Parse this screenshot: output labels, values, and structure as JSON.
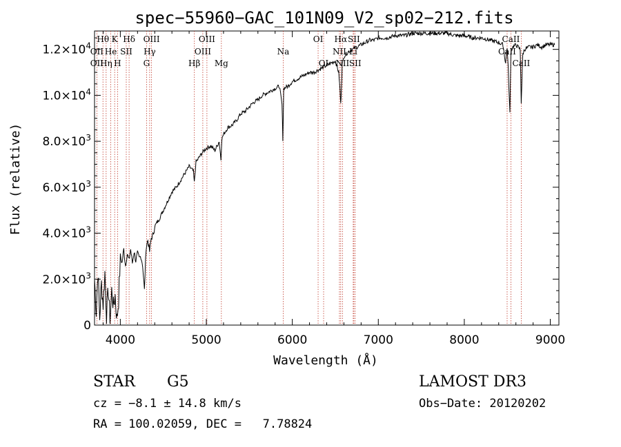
{
  "chart_data": {
    "type": "line",
    "title": "spec−55960−GAC_101N09_V2_sp02−212.fits",
    "xlabel": "Wavelength (Å)",
    "ylabel": "Flux (relative)",
    "xlim": [
      3700,
      9100
    ],
    "ylim": [
      0,
      12800
    ],
    "x_ticks": [
      4000,
      5000,
      6000,
      7000,
      8000,
      9000
    ],
    "x_tick_labels": [
      "4000",
      "5000",
      "6000",
      "7000",
      "8000",
      "9000"
    ],
    "y_ticks": [
      0,
      2000,
      4000,
      6000,
      8000,
      10000,
      12000
    ],
    "y_tick_labels": [
      {
        "m": "0",
        "e": ""
      },
      {
        "m": "2.0×10",
        "e": "3"
      },
      {
        "m": "4.0×10",
        "e": "3"
      },
      {
        "m": "6.0×10",
        "e": "3"
      },
      {
        "m": "8.0×10",
        "e": "3"
      },
      {
        "m": "1.0×10",
        "e": "4"
      },
      {
        "m": "1.2×10",
        "e": "4"
      }
    ],
    "series": [
      {
        "name": "spectrum",
        "x": [
          3700,
          3720,
          3740,
          3760,
          3780,
          3800,
          3820,
          3840,
          3860,
          3880,
          3900,
          3920,
          3940,
          3960,
          3980,
          4000,
          4020,
          4040,
          4060,
          4080,
          4100,
          4120,
          4140,
          4160,
          4180,
          4200,
          4220,
          4240,
          4260,
          4280,
          4300,
          4320,
          4340,
          4360,
          4380,
          4400,
          4450,
          4500,
          4550,
          4600,
          4650,
          4700,
          4750,
          4800,
          4850,
          4860,
          4880,
          4900,
          4950,
          5000,
          5050,
          5100,
          5150,
          5170,
          5180,
          5200,
          5250,
          5300,
          5350,
          5400,
          5450,
          5500,
          5550,
          5600,
          5650,
          5700,
          5750,
          5800,
          5850,
          5880,
          5890,
          5900,
          5950,
          6000,
          6050,
          6100,
          6150,
          6200,
          6250,
          6300,
          6350,
          6400,
          6450,
          6500,
          6540,
          6555,
          6563,
          6570,
          6580,
          6600,
          6650,
          6700,
          6750,
          6800,
          6850,
          6900,
          6950,
          7000,
          7100,
          7200,
          7300,
          7400,
          7500,
          7600,
          7700,
          7800,
          7900,
          8000,
          8100,
          8200,
          8300,
          8400,
          8450,
          8480,
          8498,
          8510,
          8530,
          8542,
          8560,
          8600,
          8650,
          8662,
          8680,
          8700,
          8750,
          8800,
          8850,
          8900,
          8950,
          9000,
          9050
        ],
        "values": [
          2000,
          600,
          2400,
          300,
          1800,
          900,
          2300,
          400,
          1600,
          200,
          1500,
          800,
          1300,
          250,
          1100,
          3000,
          2700,
          3300,
          2600,
          3100,
          2800,
          3300,
          2700,
          3200,
          2800,
          3100,
          2900,
          3000,
          2600,
          1500,
          3400,
          3700,
          3200,
          3800,
          3900,
          4300,
          4600,
          5000,
          5400,
          5800,
          6000,
          6300,
          6600,
          6900,
          6700,
          6200,
          7100,
          7200,
          7500,
          7700,
          7800,
          7600,
          8000,
          7200,
          8100,
          8300,
          8600,
          8700,
          8900,
          9200,
          9300,
          9500,
          9700,
          9800,
          10000,
          10100,
          10200,
          10300,
          10400,
          9600,
          8100,
          10300,
          10400,
          10600,
          10700,
          10800,
          10900,
          11000,
          11000,
          11100,
          11200,
          11300,
          11400,
          11500,
          11000,
          10200,
          9600,
          10300,
          11300,
          11700,
          11900,
          12000,
          12100,
          12200,
          12300,
          12400,
          12400,
          12500,
          12500,
          12600,
          12600,
          12700,
          12700,
          12700,
          12700,
          12700,
          12600,
          12600,
          12500,
          12500,
          12400,
          12300,
          12200,
          11400,
          12100,
          11200,
          9200,
          11900,
          12100,
          12200,
          12000,
          9700,
          11800,
          12000,
          12100,
          12100,
          12200,
          12100,
          12200,
          12200,
          12200
        ]
      }
    ],
    "line_markers": [
      {
        "label": "Hθ",
        "wl": 3798,
        "row": 0
      },
      {
        "label": "K",
        "wl": 3934,
        "row": 0
      },
      {
        "label": "Hδ",
        "wl": 4102,
        "row": 0
      },
      {
        "label": "OII",
        "wl": 3727,
        "row": 1
      },
      {
        "label": "He",
        "wl": 3889,
        "row": 1
      },
      {
        "label": "SII",
        "wl": 4069,
        "row": 1
      },
      {
        "label": "OIII",
        "wl": 4363,
        "row": 0
      },
      {
        "label": "Hγ",
        "wl": 4341,
        "row": 1
      },
      {
        "label": "G",
        "wl": 4305,
        "row": 2
      },
      {
        "label": "OIII",
        "wl": 5007,
        "row": 0
      },
      {
        "label": "OIII",
        "wl": 4959,
        "row": 1
      },
      {
        "label": "Hβ",
        "wl": 4861,
        "row": 2
      },
      {
        "label": "Mg",
        "wl": 5175,
        "row": 2
      },
      {
        "label": "Na",
        "wl": 5894,
        "row": 1
      },
      {
        "label": "OI",
        "wl": 6300,
        "row": 0
      },
      {
        "label": "OI",
        "wl": 6364,
        "row": 2
      },
      {
        "label": "Hα",
        "wl": 6563,
        "row": 0
      },
      {
        "label": "SII",
        "wl": 6716,
        "row": 0
      },
      {
        "label": "NII",
        "wl": 6548,
        "row": 1
      },
      {
        "label": "Li",
        "wl": 6708,
        "row": 1
      },
      {
        "label": "NII",
        "wl": 6583,
        "row": 2
      },
      {
        "label": "SII",
        "wl": 6731,
        "row": 2
      },
      {
        "label": "CaII",
        "wl": 8542,
        "row": 0
      },
      {
        "label": "CaII",
        "wl": 8498,
        "row": 1
      },
      {
        "label": "CaII",
        "wl": 8662,
        "row": 2
      },
      {
        "label": "OII",
        "wl": 3727,
        "row": 2
      },
      {
        "label": "Hη",
        "wl": 3835,
        "row": 2
      },
      {
        "label": "H",
        "wl": 3968,
        "row": 2
      }
    ],
    "marker_line_wls": [
      3727,
      3798,
      3835,
      3889,
      3934,
      3968,
      4069,
      4102,
      4305,
      4341,
      4363,
      4861,
      4959,
      5007,
      5175,
      5894,
      6300,
      6364,
      6548,
      6563,
      6583,
      6708,
      6716,
      6731,
      8498,
      8542,
      8662
    ]
  },
  "info": {
    "object_class": "STAR",
    "subclass": "G5",
    "survey": "LAMOST DR3",
    "cz": "cz = −8.1 ± 14.8 km/s",
    "obs_date": "Obs−Date: 20120202",
    "coords": "RA = 100.02059, DEC =   7.78824"
  },
  "colors": {
    "spectrum": "#000000",
    "marker_lines": "#c0392b",
    "axes": "#000000"
  }
}
